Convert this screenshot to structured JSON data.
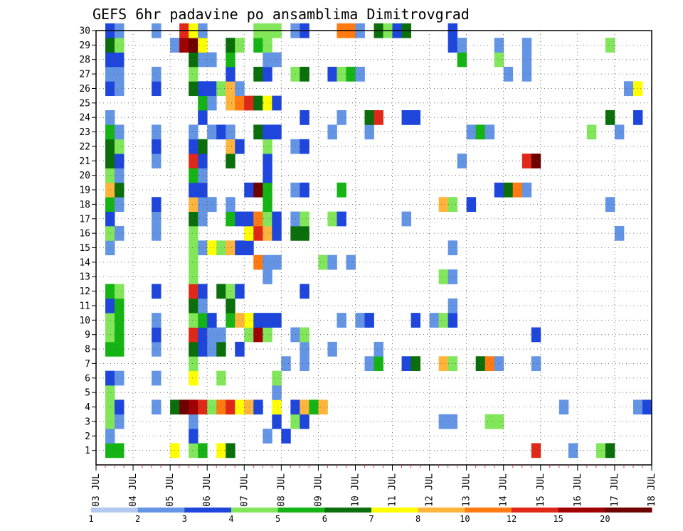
{
  "chart_data": {
    "type": "heatmap",
    "title": "GEFS 6hr padavine po ansamblima Dimitrovgrad",
    "xlabel": "",
    "ylabel": "",
    "x_tick_labels": [
      "03 JUL",
      "04 JUL",
      "05 JUL",
      "06 JUL",
      "07 JUL",
      "08 JUL",
      "09 JUL",
      "10 JUL",
      "11 JUL",
      "12 JUL",
      "13 JUL",
      "14 JUL",
      "15 JUL",
      "16 JUL",
      "17 JUL",
      "18 JUL"
    ],
    "y_tick_labels": [
      "1",
      "2",
      "3",
      "4",
      "5",
      "6",
      "7",
      "8",
      "9",
      "10",
      "11",
      "12",
      "13",
      "14",
      "15",
      "16",
      "17",
      "18",
      "19",
      "20",
      "21",
      "22",
      "23",
      "24",
      "25",
      "26",
      "27",
      "28",
      "29",
      "30"
    ],
    "ylim": [
      0,
      30
    ],
    "xlim_days": [
      0,
      15
    ],
    "steps_per_day": 4,
    "grid": true,
    "colorbar": {
      "labels": [
        "1",
        "2",
        "3",
        "4",
        "5",
        "6",
        "7",
        "8",
        "10",
        "12",
        "15",
        "20"
      ],
      "colors": [
        "#b4c8f0",
        "#6494e4",
        "#1e46dc",
        "#82e65a",
        "#14b414",
        "#0a6e0a",
        "#ffff00",
        "#ffb43c",
        "#ff7a10",
        "#e02818",
        "#a00000",
        "#6e0000"
      ]
    },
    "cells": [
      [
        1,
        1,
        4
      ],
      [
        1,
        2,
        4
      ],
      [
        1,
        8,
        6
      ],
      [
        1,
        10,
        3
      ],
      [
        1,
        11,
        4
      ],
      [
        1,
        13,
        6
      ],
      [
        1,
        14,
        5
      ],
      [
        1,
        47,
        9
      ],
      [
        1,
        51,
        1
      ],
      [
        1,
        54,
        3
      ],
      [
        1,
        55,
        5
      ],
      [
        2,
        1,
        1
      ],
      [
        2,
        10,
        2
      ],
      [
        2,
        18,
        1
      ],
      [
        2,
        20,
        2
      ],
      [
        3,
        1,
        3
      ],
      [
        3,
        2,
        1
      ],
      [
        3,
        10,
        1
      ],
      [
        3,
        19,
        2
      ],
      [
        3,
        21,
        3
      ],
      [
        3,
        22,
        2
      ],
      [
        3,
        37,
        1
      ],
      [
        3,
        38,
        1
      ],
      [
        3,
        42,
        3
      ],
      [
        3,
        43,
        3
      ],
      [
        4,
        1,
        3
      ],
      [
        4,
        2,
        2
      ],
      [
        4,
        6,
        1
      ],
      [
        4,
        8,
        5
      ],
      [
        4,
        9,
        11
      ],
      [
        4,
        10,
        10
      ],
      [
        4,
        11,
        9
      ],
      [
        4,
        12,
        3
      ],
      [
        4,
        13,
        8
      ],
      [
        4,
        14,
        9
      ],
      [
        4,
        15,
        6
      ],
      [
        4,
        16,
        7
      ],
      [
        4,
        17,
        2
      ],
      [
        4,
        19,
        6
      ],
      [
        4,
        21,
        2
      ],
      [
        4,
        22,
        7
      ],
      [
        4,
        23,
        4
      ],
      [
        4,
        24,
        7
      ],
      [
        4,
        50,
        1
      ],
      [
        4,
        58,
        1
      ],
      [
        4,
        59,
        2
      ],
      [
        5,
        1,
        3
      ],
      [
        5,
        19,
        1
      ],
      [
        6,
        1,
        2
      ],
      [
        6,
        2,
        1
      ],
      [
        6,
        6,
        1
      ],
      [
        6,
        10,
        6
      ],
      [
        6,
        13,
        3
      ],
      [
        6,
        19,
        3
      ],
      [
        7,
        10,
        3
      ],
      [
        7,
        20,
        1
      ],
      [
        7,
        22,
        1
      ],
      [
        7,
        29,
        1
      ],
      [
        7,
        30,
        4
      ],
      [
        7,
        33,
        2
      ],
      [
        7,
        34,
        5
      ],
      [
        7,
        37,
        7
      ],
      [
        7,
        38,
        3
      ],
      [
        7,
        41,
        5
      ],
      [
        7,
        42,
        8
      ],
      [
        7,
        43,
        1
      ],
      [
        7,
        47,
        1
      ],
      [
        8,
        1,
        4
      ],
      [
        8,
        2,
        4
      ],
      [
        8,
        6,
        1
      ],
      [
        8,
        10,
        5
      ],
      [
        8,
        11,
        2
      ],
      [
        8,
        12,
        1
      ],
      [
        8,
        13,
        5
      ],
      [
        8,
        15,
        2
      ],
      [
        8,
        22,
        1
      ],
      [
        8,
        25,
        1
      ],
      [
        8,
        30,
        1
      ],
      [
        9,
        1,
        3
      ],
      [
        9,
        2,
        4
      ],
      [
        9,
        6,
        2
      ],
      [
        9,
        10,
        9
      ],
      [
        9,
        11,
        2
      ],
      [
        9,
        12,
        1
      ],
      [
        9,
        13,
        1
      ],
      [
        9,
        16,
        3
      ],
      [
        9,
        17,
        10
      ],
      [
        9,
        18,
        3
      ],
      [
        9,
        21,
        1
      ],
      [
        9,
        22,
        3
      ],
      [
        9,
        47,
        2
      ],
      [
        10,
        1,
        3
      ],
      [
        10,
        2,
        4
      ],
      [
        10,
        6,
        1
      ],
      [
        10,
        10,
        3
      ],
      [
        10,
        11,
        4
      ],
      [
        10,
        12,
        2
      ],
      [
        10,
        14,
        4
      ],
      [
        10,
        15,
        7
      ],
      [
        10,
        16,
        6
      ],
      [
        10,
        17,
        2
      ],
      [
        10,
        18,
        2
      ],
      [
        10,
        19,
        2
      ],
      [
        10,
        26,
        1
      ],
      [
        10,
        28,
        1
      ],
      [
        10,
        29,
        2
      ],
      [
        10,
        34,
        2
      ],
      [
        10,
        36,
        1
      ],
      [
        10,
        37,
        3
      ],
      [
        10,
        38,
        2
      ],
      [
        11,
        1,
        2
      ],
      [
        11,
        2,
        4
      ],
      [
        11,
        10,
        5
      ],
      [
        11,
        11,
        1
      ],
      [
        11,
        14,
        5
      ],
      [
        11,
        38,
        1
      ],
      [
        12,
        1,
        4
      ],
      [
        12,
        2,
        3
      ],
      [
        12,
        6,
        2
      ],
      [
        12,
        10,
        9
      ],
      [
        12,
        11,
        2
      ],
      [
        12,
        13,
        5
      ],
      [
        12,
        14,
        3
      ],
      [
        12,
        15,
        2
      ],
      [
        12,
        22,
        2
      ],
      [
        13,
        10,
        3
      ],
      [
        13,
        18,
        1
      ],
      [
        13,
        37,
        3
      ],
      [
        13,
        38,
        1
      ],
      [
        14,
        10,
        3
      ],
      [
        14,
        17,
        8
      ],
      [
        14,
        18,
        1
      ],
      [
        14,
        19,
        1
      ],
      [
        14,
        24,
        3
      ],
      [
        14,
        25,
        1
      ],
      [
        14,
        27,
        1
      ],
      [
        15,
        1,
        1
      ],
      [
        15,
        10,
        3
      ],
      [
        15,
        11,
        1
      ],
      [
        15,
        12,
        6
      ],
      [
        15,
        13,
        3
      ],
      [
        15,
        14,
        7
      ],
      [
        15,
        15,
        2
      ],
      [
        15,
        16,
        2
      ],
      [
        15,
        38,
        1
      ],
      [
        16,
        1,
        3
      ],
      [
        16,
        2,
        1
      ],
      [
        16,
        6,
        1
      ],
      [
        16,
        10,
        3
      ],
      [
        16,
        16,
        6
      ],
      [
        16,
        17,
        9
      ],
      [
        16,
        18,
        7
      ],
      [
        16,
        19,
        2
      ],
      [
        16,
        21,
        5
      ],
      [
        16,
        22,
        5
      ],
      [
        16,
        56,
        1
      ],
      [
        17,
        1,
        2
      ],
      [
        17,
        6,
        1
      ],
      [
        17,
        10,
        5
      ],
      [
        17,
        11,
        1
      ],
      [
        17,
        14,
        4
      ],
      [
        17,
        15,
        2
      ],
      [
        17,
        16,
        2
      ],
      [
        17,
        17,
        8
      ],
      [
        17,
        18,
        3
      ],
      [
        17,
        19,
        2
      ],
      [
        17,
        21,
        1
      ],
      [
        17,
        22,
        3
      ],
      [
        17,
        25,
        3
      ],
      [
        17,
        26,
        2
      ],
      [
        17,
        33,
        1
      ],
      [
        18,
        1,
        4
      ],
      [
        18,
        2,
        1
      ],
      [
        18,
        6,
        2
      ],
      [
        18,
        10,
        7
      ],
      [
        18,
        11,
        1
      ],
      [
        18,
        12,
        1
      ],
      [
        18,
        14,
        1
      ],
      [
        18,
        18,
        4
      ],
      [
        18,
        37,
        7
      ],
      [
        18,
        38,
        3
      ],
      [
        18,
        40,
        2
      ],
      [
        18,
        55,
        1
      ],
      [
        19,
        1,
        7
      ],
      [
        19,
        2,
        5
      ],
      [
        19,
        10,
        2
      ],
      [
        19,
        11,
        2
      ],
      [
        19,
        16,
        2
      ],
      [
        19,
        17,
        11
      ],
      [
        19,
        18,
        4
      ],
      [
        19,
        21,
        1
      ],
      [
        19,
        22,
        2
      ],
      [
        19,
        26,
        4
      ],
      [
        19,
        43,
        2
      ],
      [
        19,
        44,
        5
      ],
      [
        19,
        45,
        8
      ],
      [
        19,
        46,
        1
      ],
      [
        20,
        1,
        3
      ],
      [
        20,
        2,
        1
      ],
      [
        20,
        10,
        4
      ],
      [
        20,
        11,
        1
      ],
      [
        20,
        18,
        2
      ],
      [
        21,
        1,
        5
      ],
      [
        21,
        2,
        2
      ],
      [
        21,
        6,
        1
      ],
      [
        21,
        10,
        9
      ],
      [
        21,
        11,
        2
      ],
      [
        21,
        14,
        5
      ],
      [
        21,
        18,
        2
      ],
      [
        21,
        39,
        1
      ],
      [
        21,
        46,
        9
      ],
      [
        21,
        47,
        11
      ],
      [
        22,
        1,
        5
      ],
      [
        22,
        2,
        3
      ],
      [
        22,
        6,
        2
      ],
      [
        22,
        10,
        2
      ],
      [
        22,
        11,
        5
      ],
      [
        22,
        14,
        7
      ],
      [
        22,
        15,
        2
      ],
      [
        22,
        18,
        3
      ],
      [
        22,
        21,
        1
      ],
      [
        22,
        22,
        2
      ],
      [
        23,
        1,
        4
      ],
      [
        23,
        2,
        1
      ],
      [
        23,
        6,
        1
      ],
      [
        23,
        10,
        1
      ],
      [
        23,
        12,
        1
      ],
      [
        23,
        13,
        2
      ],
      [
        23,
        14,
        1
      ],
      [
        23,
        17,
        5
      ],
      [
        23,
        18,
        2
      ],
      [
        23,
        19,
        2
      ],
      [
        23,
        25,
        1
      ],
      [
        23,
        29,
        1
      ],
      [
        23,
        40,
        1
      ],
      [
        23,
        41,
        4
      ],
      [
        23,
        42,
        1
      ],
      [
        23,
        53,
        3
      ],
      [
        23,
        56,
        1
      ],
      [
        24,
        1,
        1
      ],
      [
        24,
        11,
        2
      ],
      [
        24,
        22,
        2
      ],
      [
        24,
        26,
        1
      ],
      [
        24,
        29,
        5
      ],
      [
        24,
        30,
        9
      ],
      [
        24,
        33,
        2
      ],
      [
        24,
        34,
        2
      ],
      [
        24,
        55,
        5
      ],
      [
        24,
        58,
        2
      ],
      [
        25,
        11,
        4
      ],
      [
        25,
        12,
        1
      ],
      [
        25,
        14,
        7
      ],
      [
        25,
        15,
        8
      ],
      [
        25,
        16,
        9
      ],
      [
        25,
        17,
        5
      ],
      [
        25,
        18,
        6
      ],
      [
        25,
        19,
        2
      ],
      [
        26,
        1,
        2
      ],
      [
        26,
        2,
        1
      ],
      [
        26,
        6,
        2
      ],
      [
        26,
        10,
        5
      ],
      [
        26,
        11,
        2
      ],
      [
        26,
        12,
        2
      ],
      [
        26,
        13,
        3
      ],
      [
        26,
        14,
        7
      ],
      [
        26,
        15,
        1
      ],
      [
        26,
        57,
        1
      ],
      [
        26,
        58,
        6
      ],
      [
        27,
        1,
        1
      ],
      [
        27,
        2,
        1
      ],
      [
        27,
        6,
        1
      ],
      [
        27,
        10,
        3
      ],
      [
        27,
        14,
        2
      ],
      [
        27,
        17,
        5
      ],
      [
        27,
        18,
        2
      ],
      [
        27,
        21,
        3
      ],
      [
        27,
        22,
        5
      ],
      [
        27,
        25,
        2
      ],
      [
        27,
        26,
        3
      ],
      [
        27,
        27,
        4
      ],
      [
        27,
        28,
        1
      ],
      [
        27,
        44,
        1
      ],
      [
        27,
        46,
        1
      ],
      [
        28,
        1,
        2
      ],
      [
        28,
        2,
        2
      ],
      [
        28,
        10,
        5
      ],
      [
        28,
        11,
        1
      ],
      [
        28,
        12,
        1
      ],
      [
        28,
        14,
        4
      ],
      [
        28,
        18,
        1
      ],
      [
        28,
        19,
        1
      ],
      [
        28,
        39,
        4
      ],
      [
        28,
        43,
        3
      ],
      [
        28,
        46,
        1
      ],
      [
        29,
        1,
        5
      ],
      [
        29,
        2,
        3
      ],
      [
        29,
        8,
        1
      ],
      [
        29,
        9,
        10
      ],
      [
        29,
        10,
        11
      ],
      [
        29,
        11,
        6
      ],
      [
        29,
        14,
        5
      ],
      [
        29,
        15,
        3
      ],
      [
        29,
        17,
        4
      ],
      [
        29,
        18,
        3
      ],
      [
        29,
        38,
        2
      ],
      [
        29,
        39,
        1
      ],
      [
        29,
        43,
        1
      ],
      [
        29,
        46,
        1
      ],
      [
        29,
        55,
        3
      ],
      [
        30,
        1,
        2
      ],
      [
        30,
        2,
        1
      ],
      [
        30,
        6,
        1
      ],
      [
        30,
        9,
        9
      ],
      [
        30,
        10,
        6
      ],
      [
        30,
        11,
        1
      ],
      [
        30,
        17,
        3
      ],
      [
        30,
        18,
        3
      ],
      [
        30,
        19,
        3
      ],
      [
        30,
        21,
        1
      ],
      [
        30,
        22,
        2
      ],
      [
        30,
        26,
        8
      ],
      [
        30,
        27,
        8
      ],
      [
        30,
        28,
        1
      ],
      [
        30,
        30,
        5
      ],
      [
        30,
        31,
        3
      ],
      [
        30,
        32,
        2
      ],
      [
        30,
        33,
        5
      ],
      [
        30,
        38,
        2
      ]
    ]
  }
}
